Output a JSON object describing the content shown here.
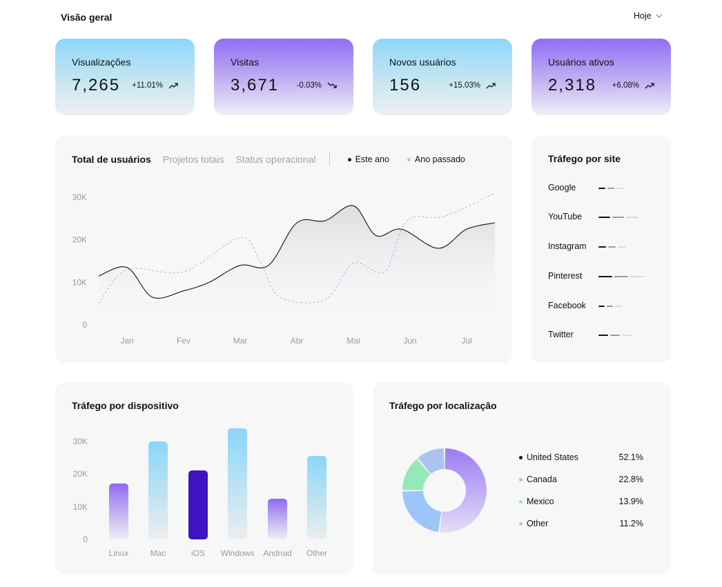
{
  "header": {
    "title": "Visão geral",
    "date_filter": "Hoje"
  },
  "stats": [
    {
      "label": "Visualizações",
      "value": "7,265",
      "delta": "+11.01%",
      "trend": "up",
      "style": "blue"
    },
    {
      "label": "Visitas",
      "value": "3,671",
      "delta": "-0.03%",
      "trend": "down",
      "style": "purple"
    },
    {
      "label": "Novos usuários",
      "value": "156",
      "delta": "+15.03%",
      "trend": "up",
      "style": "blue"
    },
    {
      "label": "Usuários ativos",
      "value": "2,318",
      "delta": "+6.08%",
      "trend": "up",
      "style": "purple"
    }
  ],
  "users_panel": {
    "tabs": [
      "Total de usuários",
      "Projetos totais",
      "Status operacional"
    ],
    "active_tab": 0,
    "legend": [
      {
        "label": "Este ano",
        "color": "#111111"
      },
      {
        "label": "Ano passado",
        "color": "#a8c5f0"
      }
    ]
  },
  "site_traffic": {
    "title": "Tráfego por site",
    "sites": [
      {
        "name": "Google",
        "level": 0.25
      },
      {
        "name": "YouTube",
        "level": 0.6
      },
      {
        "name": "Instagram",
        "level": 0.3
      },
      {
        "name": "Pinterest",
        "level": 0.75
      },
      {
        "name": "Facebook",
        "level": 0.2
      },
      {
        "name": "Twitter",
        "level": 0.45
      }
    ]
  },
  "location_traffic": {
    "title": "Tráfego por localização",
    "items": [
      {
        "name": "United States",
        "pct": "52.1%",
        "value": 52.1,
        "color": "#111111",
        "slice_color": "#a58af5"
      },
      {
        "name": "Canada",
        "pct": "22.8%",
        "value": 22.8,
        "color": "#8ecbf0",
        "slice_color": "#9bc6f7"
      },
      {
        "name": "Mexico",
        "pct": "13.9%",
        "value": 13.9,
        "color": "#97e8b8",
        "slice_color": "#97e8b8"
      },
      {
        "name": "Other",
        "pct": "11.2%",
        "value": 11.2,
        "color": "#a8c5f0",
        "slice_color": "#a9c3ee"
      }
    ]
  },
  "chart_data": [
    {
      "type": "line",
      "title": "Total de usuários",
      "x": [
        "Jan",
        "Fev",
        "Mar",
        "Abr",
        "Mai",
        "Jun",
        "Jul"
      ],
      "ylim": [
        0,
        30000
      ],
      "y_ticks": [
        "0",
        "10K",
        "20K",
        "30K"
      ],
      "series": [
        {
          "name": "Este ano",
          "points": [
            [
              -0.5,
              11500
            ],
            [
              0,
              13500
            ],
            [
              0.45,
              6500
            ],
            [
              1,
              8000
            ],
            [
              1.45,
              10000
            ],
            [
              2,
              14000
            ],
            [
              2.5,
              14000
            ],
            [
              3,
              24000
            ],
            [
              3.5,
              24500
            ],
            [
              4,
              28000
            ],
            [
              4.4,
              21000
            ],
            [
              4.85,
              22500
            ],
            [
              5.5,
              18000
            ],
            [
              6,
              22500
            ],
            [
              6.5,
              24000
            ]
          ],
          "color": "#111111",
          "style": "solid"
        },
        {
          "name": "Ano passado",
          "points": [
            [
              -0.5,
              5000
            ],
            [
              0,
              13000
            ],
            [
              1,
              12500
            ],
            [
              2,
              20500
            ],
            [
              2.35,
              15000
            ],
            [
              2.7,
              6500
            ],
            [
              3.5,
              6000
            ],
            [
              4,
              14500
            ],
            [
              4.55,
              12500
            ],
            [
              4.95,
              24500
            ],
            [
              5.6,
              25500
            ],
            [
              6.5,
              31000
            ]
          ],
          "color": "#a8b7f0",
          "style": "dashed"
        }
      ]
    },
    {
      "type": "bar",
      "title": "Tráfego por dispositivo",
      "categories": [
        "Linux",
        "Mac",
        "iOS",
        "Windows",
        "Android",
        "Other"
      ],
      "values": [
        17000,
        30000,
        21000,
        34000,
        12500,
        25500
      ],
      "colors": [
        "purple",
        "blue",
        "dark",
        "blue",
        "purple",
        "blue"
      ],
      "ylim": [
        0,
        35000
      ],
      "y_ticks": [
        "0",
        "10K",
        "20K",
        "30K"
      ]
    },
    {
      "type": "pie",
      "title": "Tráfego por localização",
      "categories": [
        "United States",
        "Canada",
        "Mexico",
        "Other"
      ],
      "values": [
        52.1,
        22.8,
        13.9,
        11.2
      ]
    }
  ]
}
